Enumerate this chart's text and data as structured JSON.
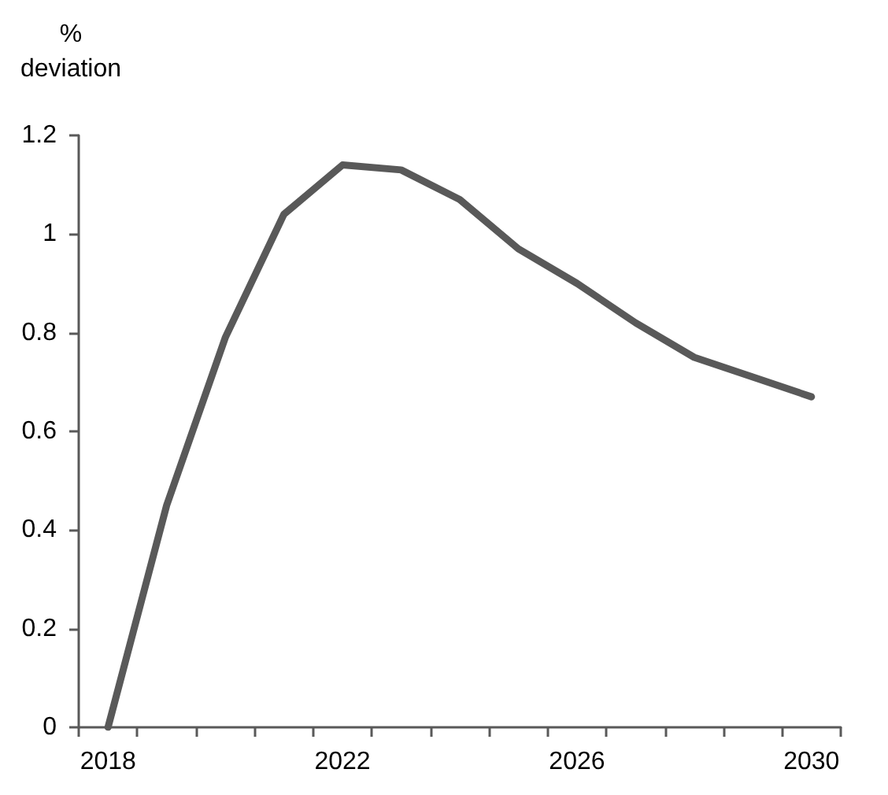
{
  "chart_data": {
    "type": "line",
    "ylabel": "%\ndeviation",
    "categories": [
      "2018",
      null,
      null,
      null,
      "2022",
      null,
      null,
      null,
      "2026",
      null,
      null,
      null,
      "2030"
    ],
    "series": [
      {
        "color": "#595959",
        "values": [
          0,
          0.45,
          0.79,
          1.04,
          1.14,
          1.13,
          1.07,
          0.97,
          0.9,
          0.82,
          0.75,
          0.71,
          0.67
        ]
      }
    ],
    "ylim": [
      0,
      1.2
    ],
    "yticks": [
      0,
      0.2,
      0.4,
      0.6,
      0.8,
      1,
      1.2
    ],
    "grid": false,
    "marker": "none",
    "line_style": "solid"
  }
}
